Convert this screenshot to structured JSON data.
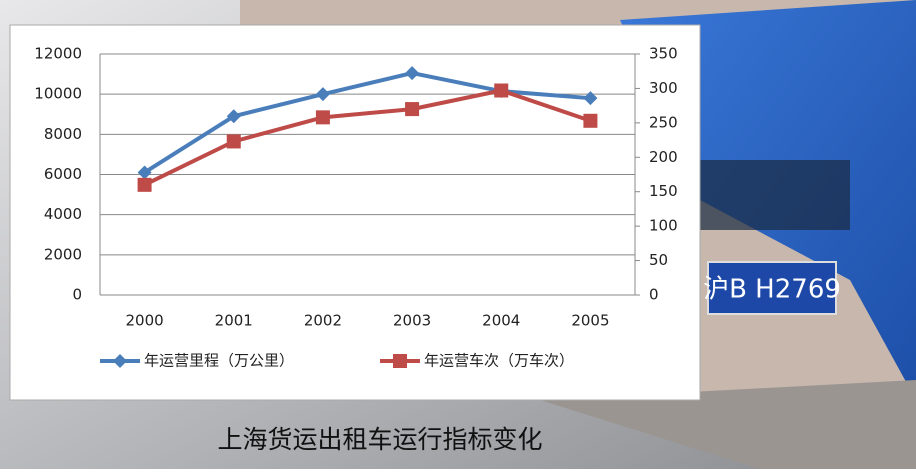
{
  "chart_data": {
    "type": "line",
    "categories": [
      "2000",
      "2001",
      "2002",
      "2003",
      "2004",
      "2005"
    ],
    "series": [
      {
        "name": "年运营里程（万公里）",
        "color": "#4a7ebb",
        "marker": "diamond",
        "values": [
          6100,
          8900,
          10000,
          11050,
          10150,
          9800
        ]
      },
      {
        "name": "年运营车次（万车次）",
        "color": "#be4b48",
        "marker": "square",
        "axis": "y2",
        "values": [
          160,
          223,
          258,
          270,
          297,
          253
        ]
      }
    ],
    "ylim": [
      0,
      12000
    ],
    "yticks": [
      0,
      2000,
      4000,
      6000,
      8000,
      10000,
      12000
    ],
    "y2lim": [
      0,
      350
    ],
    "y2ticks": [
      0,
      50,
      100,
      150,
      200,
      250,
      300,
      350
    ],
    "grid": true,
    "legend": "bottom"
  },
  "caption": "上海货运出租车运行指标变化",
  "photo_plate": "沪B H2769"
}
